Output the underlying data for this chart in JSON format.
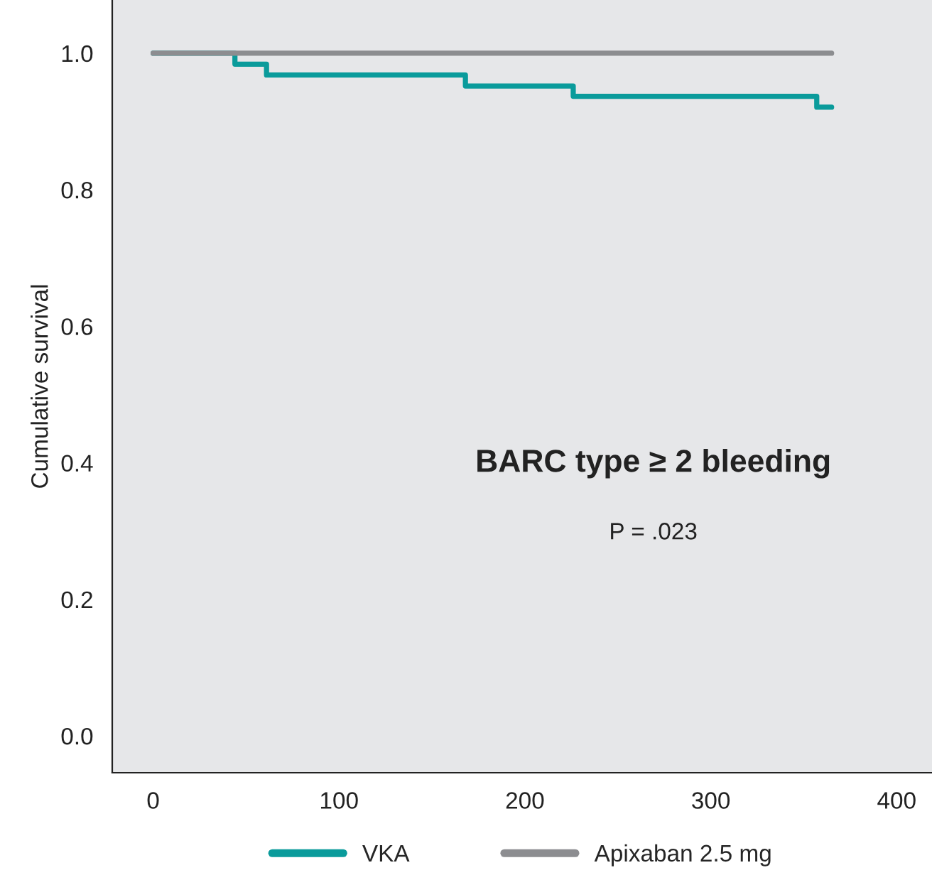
{
  "chart_data": {
    "type": "step",
    "ylabel": "Cumulative survival",
    "xlim": [
      -22,
      419
    ],
    "xticks": [
      0,
      100,
      200,
      300,
      400
    ],
    "ylim": [
      -0.054,
      1.078
    ],
    "yticks": [
      {
        "value": 0,
        "label": "0.0"
      },
      {
        "value": 0.2,
        "label": "0.2"
      },
      {
        "value": 0.4,
        "label": "0.4"
      },
      {
        "value": 0.6,
        "label": "0.6"
      },
      {
        "value": 0.8,
        "label": "0.8"
      },
      {
        "value": 1,
        "label": "1.0"
      }
    ],
    "series": [
      {
        "name": "VKA",
        "color": "#0a9b9b",
        "x": [
          0,
          44,
          61,
          168,
          226,
          357,
          365
        ],
        "values": [
          1,
          0.984,
          0.968,
          0.952,
          0.937,
          0.921,
          0.921
        ]
      },
      {
        "name": "Apixaban 2.5 mg",
        "color": "#8c8d90",
        "x": [
          0,
          365
        ],
        "values": [
          1,
          1
        ]
      }
    ],
    "annotations": [
      "BARC type ≥ 2 bleeding",
      "P = .023"
    ],
    "legend": "bottom",
    "grid": false
  }
}
